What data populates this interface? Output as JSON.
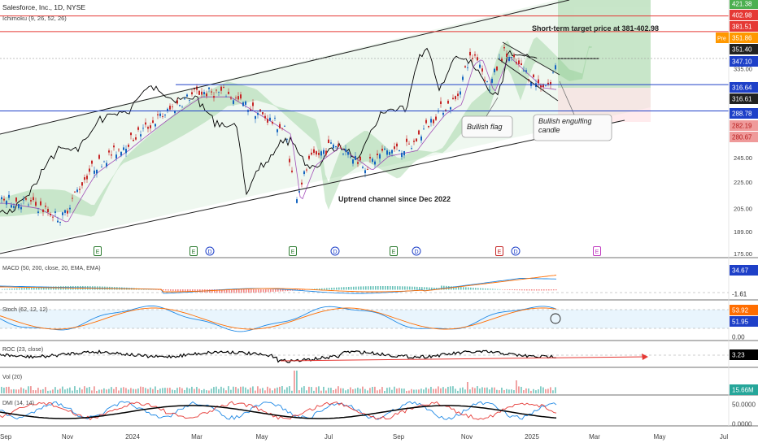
{
  "chart_data": [
    {
      "panel": "price",
      "type": "candlestick",
      "header": "Salesforce, Inc., 1D, NYSE",
      "indicator_label": "Ichimoku (9, 26, 52, 26)",
      "x_ticks": [
        "Sep",
        "Nov",
        "2024",
        "Mar",
        "May",
        "Jul",
        "Sep",
        "Nov",
        "2025",
        "Mar",
        "May",
        "Jul"
      ],
      "y_ticks": [
        "175.00",
        "189.00",
        "205.00",
        "225.00",
        "245.00",
        "335.00"
      ],
      "ylim": [
        175,
        421.38
      ],
      "y_log_scale": true,
      "price_tags": [
        {
          "text": "421.38",
          "bg": "#4caf50",
          "fg": "#ffffff"
        },
        {
          "text": "402.98",
          "bg": "#e53935",
          "fg": "#ffffff"
        },
        {
          "text": "381.51",
          "bg": "#e53935",
          "fg": "#ffffff"
        },
        {
          "text": "351.86",
          "bg": "#ff9800",
          "fg": "#ffffff",
          "badge": "Pre"
        },
        {
          "text": "351.40",
          "bg": "#212121",
          "fg": "#ffffff"
        },
        {
          "text": "347.10",
          "bg": "#1e40c8",
          "fg": "#ffffff"
        },
        {
          "text": "316.64",
          "bg": "#1e40c8",
          "fg": "#ffffff"
        },
        {
          "text": "316.61",
          "bg": "#212121",
          "fg": "#ffffff"
        },
        {
          "text": "288.78",
          "bg": "#1e40c8",
          "fg": "#ffffff"
        },
        {
          "text": "282.19",
          "bg": "#ef9a9a",
          "fg": "#b71c1c"
        },
        {
          "text": "280.67",
          "bg": "#ef9a9a",
          "fg": "#b71c1c"
        }
      ],
      "horizontal_lines": [
        {
          "price": 402.98,
          "color": "#e53935"
        },
        {
          "price": 381.51,
          "color": "#e53935"
        },
        {
          "price": 316.64,
          "color": "#1e40c8"
        },
        {
          "price": 288.78,
          "color": "#1e40c8"
        }
      ],
      "annotations": [
        "Short-term target price at 381-402.98",
        "Bullish flag",
        "Bullish engulfing candle",
        "Uptrend channel since Dec 2022"
      ],
      "event_markers": [
        {
          "text": "E",
          "color": "#2e7d32"
        },
        {
          "text": "E",
          "color": "#2e7d32"
        },
        {
          "text": "D",
          "color": "#1e40c8"
        },
        {
          "text": "E",
          "color": "#2e7d32"
        },
        {
          "text": "D",
          "color": "#1e40c8"
        },
        {
          "text": "E",
          "color": "#2e7d32"
        },
        {
          "text": "D",
          "color": "#1e40c8"
        },
        {
          "text": "E",
          "color": "#c62828"
        },
        {
          "text": "D",
          "color": "#1e40c8"
        },
        {
          "text": "E",
          "color": "#c039c0"
        }
      ]
    },
    {
      "panel": "macd",
      "type": "line",
      "label": "MACD (50, 200, close, 20, EMA, EMA)",
      "y_ticks": [
        "34.67",
        "-1.61"
      ],
      "series_colors": [
        "#1e88e5",
        "#ff6d00"
      ]
    },
    {
      "panel": "stoch",
      "type": "line",
      "label": "Stoch (62, 12, 12)",
      "y_ticks": [
        "53.92",
        "51.95",
        "0.00"
      ],
      "series_colors": [
        "#1e88e5",
        "#ff6d00"
      ]
    },
    {
      "panel": "roc",
      "type": "line",
      "label": "ROC (23, close)",
      "y_ticks": [
        "3.23"
      ]
    },
    {
      "panel": "volume",
      "type": "bar",
      "label": "Vol (20)",
      "y_ticks": [
        "15.66M"
      ]
    },
    {
      "panel": "dmi",
      "type": "line",
      "label": "DMI (14, 14)",
      "y_ticks": [
        "50.0000",
        "0.0000"
      ],
      "series_colors": [
        "#1e88e5",
        "#e53935",
        "#000000"
      ]
    }
  ]
}
